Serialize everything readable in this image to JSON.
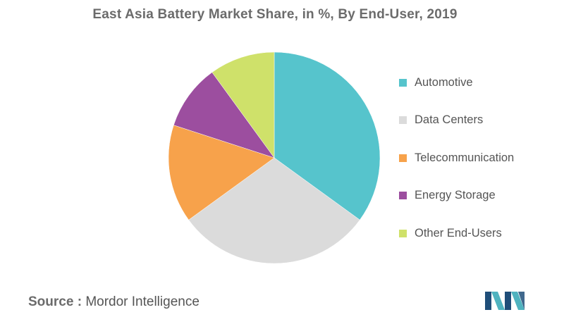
{
  "colors": {
    "automotive": "#56C4CC",
    "data_centers": "#DBDBDB",
    "telecommunication": "#F7A24B",
    "energy_storage": "#9C4E9F",
    "other_end_users": "#CFE16A",
    "title": "#6b6b6b",
    "source_text": "#555555",
    "logo_dark": "#1f4e79",
    "logo_light": "#4fb3bf"
  },
  "chart_data": {
    "type": "pie",
    "title": "East Asia Battery Market Share, in %, By End-User, 2019",
    "categories": [
      "Automotive",
      "Data Centers",
      "Telecommunication",
      "Energy Storage",
      "Other End-Users"
    ],
    "values": [
      35,
      30,
      15,
      10,
      10
    ],
    "legend_position": "right",
    "start_angle": "top, clockwise"
  },
  "source": {
    "label": "Source :",
    "value": "Mordor Intelligence"
  },
  "logo": {
    "icon": "mordor-intelligence-logo"
  }
}
